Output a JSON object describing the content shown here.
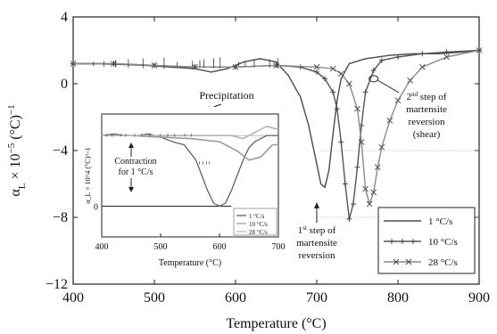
{
  "chart_data": [
    {
      "type": "line",
      "xlabel": "Temperature (°C)",
      "ylabel_main": "α",
      "ylabel_sub": "L",
      "ylabel_tail": " × 10",
      "ylabel_sup": "−5",
      "ylabel_unit": " (°C)",
      "ylabel_unit_sup": "−1",
      "xlim": [
        400,
        900
      ],
      "ylim": [
        -12,
        4
      ],
      "xticks": [
        400,
        500,
        600,
        700,
        800,
        900
      ],
      "yticks": [
        -12,
        -8,
        -4,
        0,
        4
      ],
      "ytick_labels": [
        "−12",
        "−8",
        "−4",
        "0",
        "4"
      ],
      "legend_position": "bottom-right",
      "series": [
        {
          "name": "1 °C/s",
          "marker": "none",
          "x": [
            400,
            430,
            460,
            490,
            520,
            550,
            570,
            590,
            610,
            630,
            650,
            665,
            680,
            690,
            700,
            705,
            710,
            715,
            720,
            725,
            730,
            740,
            760,
            790,
            820,
            850,
            880,
            900
          ],
          "y": [
            1.2,
            1.2,
            1.15,
            1.1,
            1.0,
            0.9,
            0.7,
            0.9,
            1.3,
            1.5,
            1.3,
            0.5,
            -0.8,
            -2.5,
            -4.8,
            -6.0,
            -6.2,
            -5.2,
            -3.0,
            -1.0,
            0.3,
            1.2,
            1.5,
            1.7,
            1.8,
            1.8,
            1.9,
            2.0
          ]
        },
        {
          "name": "10 °C/s",
          "marker": "plus",
          "x": [
            400,
            450,
            500,
            550,
            600,
            650,
            680,
            700,
            710,
            720,
            725,
            730,
            735,
            740,
            745,
            750,
            755,
            760,
            770,
            780,
            800,
            830,
            860,
            900
          ],
          "y": [
            1.2,
            1.2,
            1.1,
            1.0,
            1.0,
            1.1,
            1.0,
            0.7,
            0.3,
            -0.5,
            -1.5,
            -3.5,
            -6.0,
            -8.1,
            -7.2,
            -5.0,
            -2.5,
            -0.5,
            0.8,
            1.4,
            1.6,
            1.8,
            1.9,
            2.0
          ]
        },
        {
          "name": "28 °C/s",
          "marker": "x",
          "x": [
            400,
            450,
            500,
            550,
            600,
            650,
            700,
            720,
            730,
            740,
            750,
            755,
            760,
            765,
            770,
            775,
            780,
            790,
            800,
            815,
            830,
            860,
            900
          ],
          "y": [
            1.2,
            1.2,
            1.1,
            1.0,
            1.0,
            1.1,
            1.0,
            0.9,
            0.6,
            0.0,
            -1.5,
            -3.5,
            -6.3,
            -7.2,
            -6.5,
            -5.0,
            -3.8,
            -2.2,
            -1.0,
            0.2,
            1.0,
            1.6,
            2.0
          ]
        }
      ],
      "annotations": [
        {
          "text": "Precipitation"
        },
        {
          "lines": [
            "1",
            "st step of",
            "martensite",
            "reversion"
          ],
          "sup": "st"
        },
        {
          "lines": [
            "2",
            "nd step of",
            "martensite",
            "reversion",
            "(shear)"
          ],
          "sup": "nd"
        }
      ]
    },
    {
      "type": "line",
      "xlabel": "Temperature (°C)",
      "ylabel": "α_L × 10^4 (°C)^-1",
      "xlim": [
        400,
        700
      ],
      "ylim": [
        -1,
        3
      ],
      "xticks": [
        400,
        500,
        600,
        700
      ],
      "yticks": [
        0
      ],
      "annotation": [
        "Contraction",
        "for 1 °C/s"
      ],
      "series": [
        {
          "name": "1 °C/s",
          "x": [
            400,
            420,
            440,
            460,
            480,
            500,
            520,
            540,
            560,
            570,
            580,
            590,
            600,
            610,
            620,
            630,
            640,
            650,
            660,
            670,
            680,
            690,
            700
          ],
          "y": [
            2.3,
            2.35,
            2.3,
            2.3,
            2.35,
            2.25,
            2.1,
            2.0,
            1.5,
            1.0,
            0.5,
            0.1,
            0.0,
            0.1,
            0.5,
            1.0,
            1.5,
            1.9,
            2.1,
            2.2,
            2.3,
            2.3,
            2.3
          ]
        },
        {
          "name": "10 °C/s",
          "x": [
            400,
            450,
            500,
            550,
            600,
            630,
            650,
            670,
            680,
            690,
            700
          ],
          "y": [
            2.3,
            2.3,
            2.25,
            2.2,
            2.1,
            1.8,
            1.5,
            1.6,
            1.8,
            2.0,
            2.0
          ]
        },
        {
          "name": "28 °C/s",
          "x": [
            400,
            450,
            500,
            550,
            600,
            620,
            640,
            660,
            680,
            700
          ],
          "y": [
            2.3,
            2.3,
            2.3,
            2.3,
            2.3,
            2.3,
            2.2,
            2.4,
            2.6,
            2.5
          ]
        }
      ]
    }
  ]
}
